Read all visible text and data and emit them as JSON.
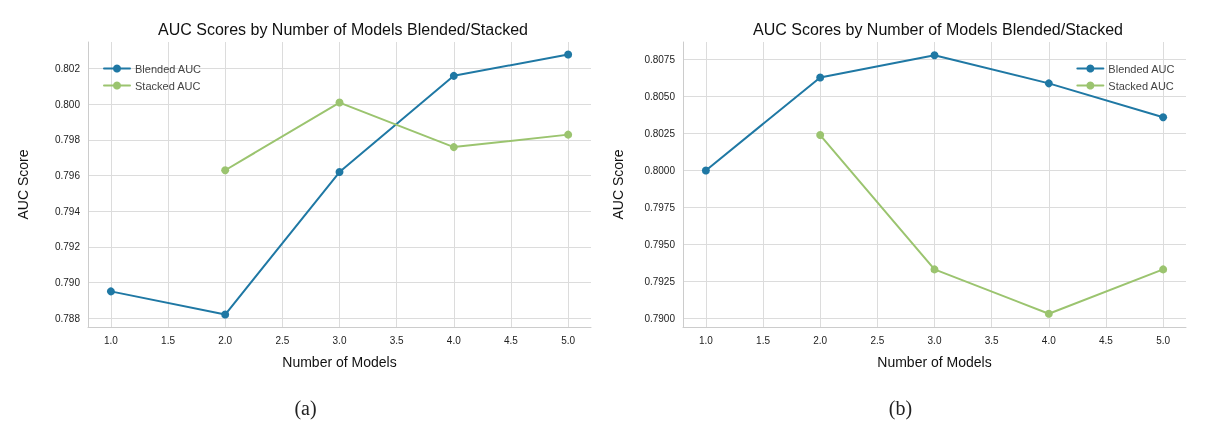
{
  "chart_data": [
    {
      "type": "line",
      "title": "AUC Scores by Number of Models Blended/Stacked",
      "xlabel": "Number of Models",
      "ylabel": "AUC Score",
      "x": [
        1,
        2,
        3,
        4,
        5
      ],
      "series": [
        {
          "name": "Blended AUC",
          "color": "#1f78a4",
          "values": [
            0.7895,
            0.7882,
            0.7962,
            0.8016,
            0.8028
          ]
        },
        {
          "name": "Stacked AUC",
          "color": "#9bc46f",
          "values": [
            null,
            0.7963,
            0.8001,
            0.7976,
            0.7983
          ]
        }
      ],
      "xlim": [
        0.8,
        5.2
      ],
      "xticks": [
        {
          "value": 1,
          "label": "1.0"
        },
        1.5,
        {
          "value": 2,
          "label": "2.0"
        },
        2.5,
        {
          "value": 3,
          "label": "3.0"
        },
        3.5,
        {
          "value": 4,
          "label": "4.0"
        },
        4.5,
        {
          "value": 5,
          "label": "5.0"
        }
      ],
      "ylim": [
        0.7875,
        0.8035
      ],
      "yticks": [
        0.788,
        {
          "value": 0.79,
          "label": "0.790"
        },
        0.792,
        0.794,
        0.796,
        0.798,
        {
          "value": 0.8,
          "label": "0.800"
        },
        0.802
      ],
      "grid": true,
      "legend": "top left",
      "marker": "circle",
      "line_style": "solid",
      "annotations": [
        "(a)"
      ]
    },
    {
      "type": "line",
      "title": "AUC Scores by Number of Models Blended/Stacked",
      "xlabel": "Number of Models",
      "ylabel": "AUC Score",
      "x": [
        1,
        2,
        3,
        4,
        5
      ],
      "series": [
        {
          "name": "Blended AUC",
          "color": "#1f78a4",
          "values": [
            0.8,
            0.8063,
            0.8078,
            0.8059,
            0.8036
          ]
        },
        {
          "name": "Stacked AUC",
          "color": "#9bc46f",
          "values": [
            null,
            0.8024,
            0.7933,
            0.7903,
            0.7933
          ]
        }
      ],
      "xlim": [
        0.8,
        5.2
      ],
      "xticks": [
        {
          "value": 1,
          "label": "1.0"
        },
        1.5,
        {
          "value": 2,
          "label": "2.0"
        },
        2.5,
        {
          "value": 3,
          "label": "3.0"
        },
        3.5,
        {
          "value": 4,
          "label": "4.0"
        },
        4.5,
        {
          "value": 5,
          "label": "5.0"
        }
      ],
      "ylim": [
        0.7894,
        0.8087
      ],
      "yticks": [
        {
          "value": 0.79,
          "label": "0.7900"
        },
        0.7925,
        {
          "value": 0.795,
          "label": "0.7950"
        },
        0.7975,
        {
          "value": 0.8,
          "label": "0.8000"
        },
        0.8025,
        {
          "value": 0.805,
          "label": "0.8050"
        },
        0.8075
      ],
      "grid": true,
      "legend": "top right",
      "marker": "circle",
      "line_style": "solid",
      "annotations": [
        "(b)"
      ]
    }
  ]
}
